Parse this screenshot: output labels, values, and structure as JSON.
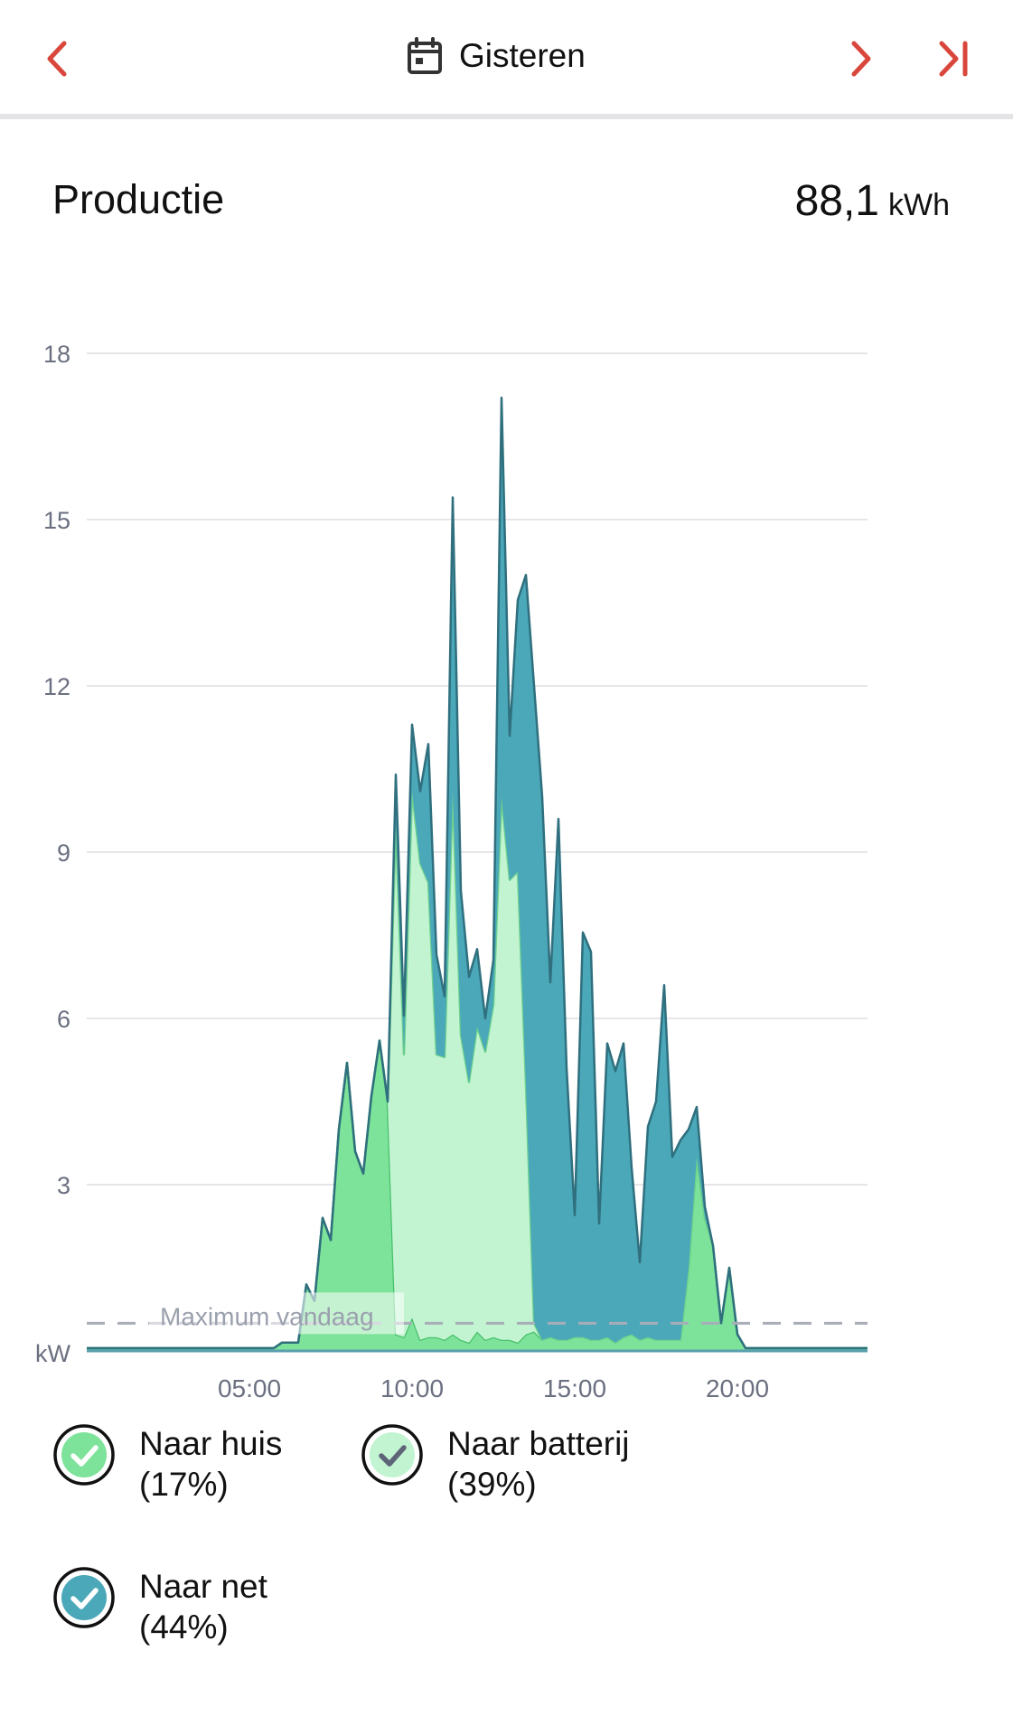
{
  "header": {
    "prev_icon": "chevron-left-icon",
    "calendar_icon": "calendar-icon",
    "date_label": "Gisteren",
    "next_icon": "chevron-right-icon",
    "last_icon": "skip-to-last-icon",
    "accent_color": "#d9473c"
  },
  "summary": {
    "title": "Productie",
    "total_value": "88,1",
    "total_unit": "kWh"
  },
  "legend": [
    {
      "label_line1": "Naar huis",
      "label_line2": "(17%)",
      "color": "#7ee39a",
      "check_color": "#ffffff"
    },
    {
      "label_line1": "Naar batterij",
      "label_line2": "(39%)",
      "color": "#c3f4d2",
      "check_color": "#5e6478"
    },
    {
      "label_line1": "Naar net",
      "label_line2": "(44%)",
      "color": "#4aa8b9",
      "check_color": "#ffffff"
    }
  ],
  "chart_data": {
    "type": "area",
    "stacked": true,
    "x_unit": "hours",
    "xlim": [
      0,
      24
    ],
    "ylim": [
      0,
      18
    ],
    "y_ticks": [
      18,
      15,
      12,
      9,
      6,
      3
    ],
    "y_ticks_label": [
      "18",
      "15",
      "12",
      "9",
      "6",
      "3"
    ],
    "y_unit_label": "kW",
    "x_ticks": [
      5,
      10,
      15,
      20
    ],
    "x_tick_labels": [
      "05:00",
      "10:00",
      "15:00",
      "20:00"
    ],
    "grid": true,
    "reference_line": {
      "label": "Maximum vandaag",
      "value": 0.5
    },
    "x": [
      0,
      5.75,
      6,
      6.5,
      6.75,
      7,
      7.25,
      7.5,
      7.75,
      8,
      8.25,
      8.5,
      8.75,
      9,
      9.25,
      9.5,
      9.75,
      10,
      10.25,
      10.5,
      10.75,
      11,
      11.25,
      11.5,
      11.75,
      12,
      12.25,
      12.5,
      12.75,
      13,
      13.25,
      13.5,
      13.75,
      14,
      14.25,
      14.5,
      14.75,
      15,
      15.25,
      15.5,
      15.75,
      16,
      16.25,
      16.5,
      16.75,
      17,
      17.25,
      17.5,
      17.75,
      18,
      18.25,
      18.5,
      18.75,
      19,
      19.25,
      19.5,
      19.75,
      20,
      20.25,
      20.5,
      21,
      24
    ],
    "series": [
      {
        "name": "Naar huis",
        "color": "#7ee39a",
        "stroke": "#45c06a",
        "values": [
          0.05,
          0.05,
          0.15,
          0.15,
          1.2,
          0.9,
          2.4,
          2.0,
          4.0,
          5.2,
          3.6,
          3.2,
          4.6,
          5.6,
          4.5,
          0.3,
          0.25,
          0.6,
          0.2,
          0.25,
          0.25,
          0.2,
          0.3,
          0.2,
          0.15,
          0.35,
          0.2,
          0.25,
          0.2,
          0.2,
          0.15,
          0.3,
          0.35,
          0.2,
          0.25,
          0.2,
          0.2,
          0.25,
          0.25,
          0.2,
          0.2,
          0.25,
          0.15,
          0.25,
          0.3,
          0.2,
          0.25,
          0.2,
          0.2,
          0.2,
          0.2,
          1.5,
          3.5,
          2.4,
          1.9,
          0.5,
          1.5,
          0.3,
          0.05,
          0.05,
          0.05,
          0.05
        ]
      },
      {
        "name": "Naar batterij",
        "color": "#c3f4d2",
        "stroke": "#6fd28d",
        "values": [
          0,
          0,
          0,
          0,
          0,
          0,
          0,
          0,
          0,
          0,
          0,
          0,
          0,
          0,
          0,
          9.2,
          5.1,
          9.5,
          8.6,
          8.2,
          5.1,
          5.1,
          9.8,
          5.5,
          4.7,
          5.5,
          5.2,
          6.0,
          9.8,
          8.3,
          8.5,
          4.5,
          0.15,
          0,
          0,
          0,
          0,
          0,
          0,
          0,
          0,
          0,
          0,
          0,
          0,
          0,
          0,
          0,
          0,
          0,
          0,
          0,
          0,
          0,
          0,
          0,
          0,
          0,
          0,
          0,
          0,
          0
        ]
      },
      {
        "name": "Naar net",
        "color": "#4aa8b9",
        "stroke": "#2f6f7e",
        "values": [
          0,
          0,
          0,
          0,
          0,
          0,
          0,
          0,
          0,
          0,
          0,
          0,
          0,
          0,
          0,
          0.9,
          0.7,
          1.2,
          1.3,
          2.5,
          1.8,
          1.1,
          5.3,
          2.6,
          1.9,
          1.4,
          0.6,
          0.8,
          7.2,
          2.6,
          4.9,
          9.2,
          11.5,
          9.8,
          6.4,
          9.4,
          4.9,
          2.2,
          7.3,
          7.0,
          2.1,
          5.3,
          4.9,
          5.3,
          3.0,
          1.4,
          3.8,
          4.3,
          6.4,
          3.3,
          3.6,
          2.5,
          0.9,
          0.2,
          0,
          0,
          0,
          0,
          0,
          0,
          0,
          0
        ]
      }
    ]
  }
}
